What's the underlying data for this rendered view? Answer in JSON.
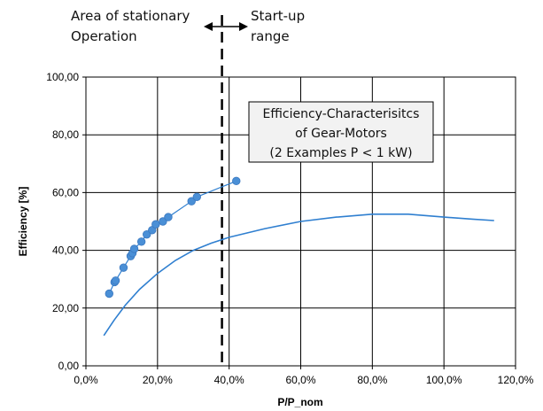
{
  "annotations": {
    "left_label_line1": "Area of stationary",
    "left_label_line2": "Operation",
    "right_label_line1": "Start-up",
    "right_label_line2": "range",
    "box_line1": "Efficiency-Characterisitcs",
    "box_line2": "of Gear-Motors",
    "box_line3": "(2 Examples P < 1 kW)"
  },
  "colors": {
    "series": "#4a8fd6",
    "series_line": "#2f7fd0",
    "grid": "#000000",
    "box_fill": "#f2f2f2",
    "divider": "#000000"
  },
  "chart_data": {
    "type": "line",
    "title": "",
    "xlabel": "P/P_nom",
    "ylabel": "Efficiency [%]",
    "xlim": [
      0,
      120
    ],
    "ylim": [
      0,
      100
    ],
    "x_ticks": [
      "0,0%",
      "20,0%",
      "40,0%",
      "60,0%",
      "80,0%",
      "100,0%",
      "120,0%"
    ],
    "y_ticks": [
      "0,00",
      "20,00",
      "40,00",
      "60,00",
      "80,00",
      "100,00"
    ],
    "grid": true,
    "legend": "none",
    "divider_x": 38,
    "series": [
      {
        "style": "line-markers",
        "x": [
          6.5,
          8.0,
          8.3,
          10.5,
          12.5,
          13.0,
          13.5,
          15.5,
          17.0,
          18.5,
          19.5,
          21.5,
          23.0,
          29.5,
          31.0,
          42.0
        ],
        "y": [
          25.0,
          29.0,
          29.5,
          34.0,
          38.0,
          39.0,
          40.5,
          43.0,
          45.5,
          47.0,
          49.0,
          50.0,
          51.5,
          57.0,
          58.5,
          64.0
        ]
      },
      {
        "style": "line",
        "x": [
          5,
          8,
          11,
          15,
          20,
          25,
          30,
          35,
          40,
          45,
          50,
          60,
          70,
          80,
          90,
          100,
          108,
          114
        ],
        "y": [
          10.5,
          16.0,
          21.0,
          26.5,
          32.0,
          36.5,
          40.0,
          42.5,
          44.5,
          46.0,
          47.5,
          50.0,
          51.5,
          52.5,
          52.5,
          51.5,
          50.8,
          50.3
        ]
      }
    ]
  }
}
